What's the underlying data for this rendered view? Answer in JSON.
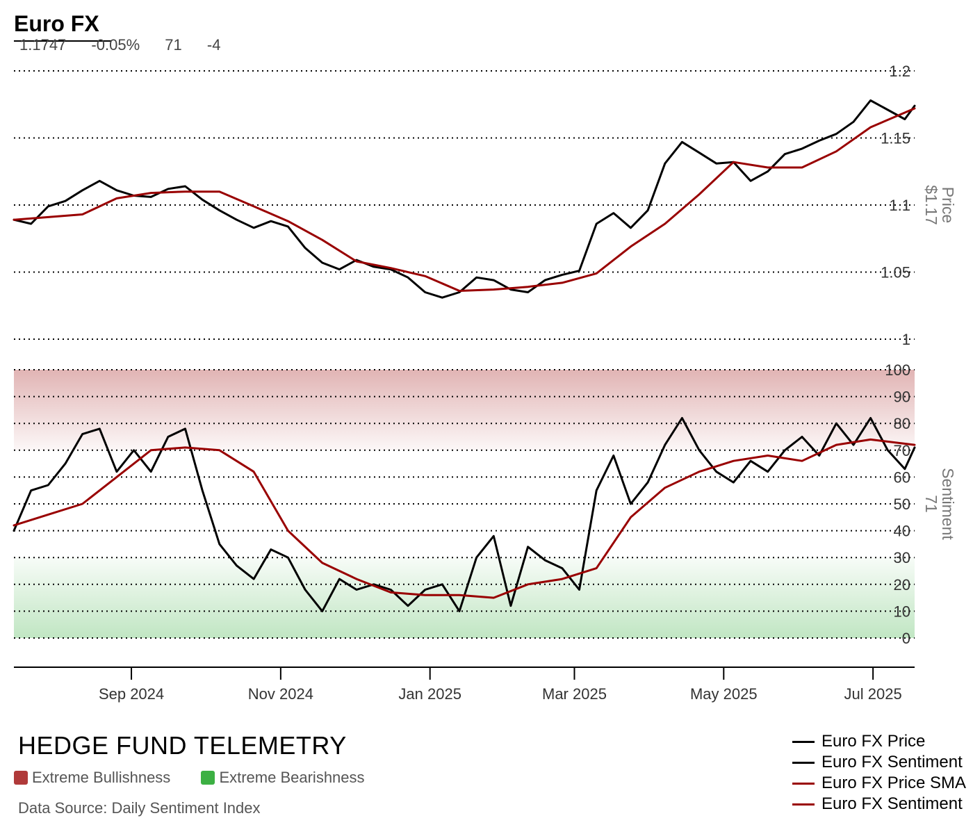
{
  "header": {
    "title": "Euro FX",
    "price": "1.1747",
    "change": "-0.05%",
    "sentiment": "71",
    "sentiment_change": "-4"
  },
  "footer": {
    "brand": "HEDGE FUND TELEMETRY",
    "source": "Data Source: Daily Sentiment Index",
    "zones": [
      {
        "label": "Extreme Bullishness",
        "color": "#b03a3a"
      },
      {
        "label": "Extreme Bearishness",
        "color": "#3cb043"
      }
    ]
  },
  "legend": [
    {
      "label": "Euro FX Price",
      "color": "#000000"
    },
    {
      "label": "Euro FX Sentiment",
      "color": "#000000"
    },
    {
      "label": "Euro FX Price SMA",
      "color": "#990000"
    },
    {
      "label": "Euro FX Sentiment",
      "color": "#990000"
    }
  ],
  "colors": {
    "line": "#000000",
    "sma": "#990000",
    "grid": "#000000",
    "axis_text": "#333333",
    "side_label": "#777777"
  },
  "chart_data": [
    {
      "type": "line",
      "panel": "price",
      "ylabel": "Price",
      "ylabel_value": "$1.17",
      "ylim": [
        1.0,
        1.2
      ],
      "yticks": [
        1,
        1.05,
        1.1,
        1.15,
        1.2
      ],
      "ytick_labels": [
        "1",
        "1.05",
        "1.1",
        "1.15",
        "1.2"
      ],
      "x_range": [
        "2024-07-15",
        "2025-07-18"
      ],
      "xticks": [
        "2024-09-01",
        "2024-11-01",
        "2025-01-01",
        "2025-03-01",
        "2025-05-01",
        "2025-07-01"
      ],
      "xtick_labels": [
        "Sep 2024",
        "Nov 2024",
        "Jan 2025",
        "Mar 2025",
        "May 2025",
        "Jul 2025"
      ],
      "series": [
        {
          "name": "Euro FX Price",
          "color": "#000000",
          "x": [
            "2024-07-15",
            "2024-07-22",
            "2024-07-29",
            "2024-08-05",
            "2024-08-12",
            "2024-08-19",
            "2024-08-26",
            "2024-09-02",
            "2024-09-09",
            "2024-09-16",
            "2024-09-23",
            "2024-09-30",
            "2024-10-07",
            "2024-10-14",
            "2024-10-21",
            "2024-10-28",
            "2024-11-04",
            "2024-11-11",
            "2024-11-18",
            "2024-11-25",
            "2024-12-02",
            "2024-12-09",
            "2024-12-16",
            "2024-12-23",
            "2024-12-30",
            "2025-01-06",
            "2025-01-13",
            "2025-01-20",
            "2025-01-27",
            "2025-02-03",
            "2025-02-10",
            "2025-02-17",
            "2025-02-24",
            "2025-03-03",
            "2025-03-10",
            "2025-03-17",
            "2025-03-24",
            "2025-03-31",
            "2025-04-07",
            "2025-04-14",
            "2025-04-21",
            "2025-04-28",
            "2025-05-05",
            "2025-05-12",
            "2025-05-19",
            "2025-05-26",
            "2025-06-02",
            "2025-06-09",
            "2025-06-16",
            "2025-06-23",
            "2025-06-30",
            "2025-07-07",
            "2025-07-14",
            "2025-07-18"
          ],
          "values": [
            1.089,
            1.086,
            1.099,
            1.103,
            1.111,
            1.118,
            1.111,
            1.107,
            1.106,
            1.112,
            1.114,
            1.104,
            1.096,
            1.089,
            1.083,
            1.088,
            1.084,
            1.068,
            1.057,
            1.052,
            1.059,
            1.054,
            1.052,
            1.046,
            1.035,
            1.031,
            1.035,
            1.046,
            1.044,
            1.037,
            1.035,
            1.044,
            1.048,
            1.051,
            1.086,
            1.094,
            1.083,
            1.096,
            1.131,
            1.147,
            1.139,
            1.131,
            1.132,
            1.118,
            1.125,
            1.138,
            1.142,
            1.148,
            1.153,
            1.162,
            1.178,
            1.171,
            1.164,
            1.174
          ]
        },
        {
          "name": "Euro FX Price SMA",
          "color": "#990000",
          "x": [
            "2024-07-15",
            "2024-07-29",
            "2024-08-12",
            "2024-08-26",
            "2024-09-09",
            "2024-09-23",
            "2024-10-07",
            "2024-10-21",
            "2024-11-04",
            "2024-11-18",
            "2024-12-02",
            "2024-12-16",
            "2024-12-30",
            "2025-01-13",
            "2025-01-27",
            "2025-02-10",
            "2025-02-24",
            "2025-03-10",
            "2025-03-24",
            "2025-04-07",
            "2025-04-21",
            "2025-05-05",
            "2025-05-19",
            "2025-06-02",
            "2025-06-16",
            "2025-06-30",
            "2025-07-18"
          ],
          "values": [
            1.089,
            1.091,
            1.093,
            1.105,
            1.109,
            1.11,
            1.11,
            1.099,
            1.088,
            1.074,
            1.058,
            1.053,
            1.047,
            1.036,
            1.037,
            1.039,
            1.042,
            1.049,
            1.069,
            1.086,
            1.108,
            1.132,
            1.128,
            1.128,
            1.14,
            1.158,
            1.172
          ]
        }
      ]
    },
    {
      "type": "line",
      "panel": "sentiment",
      "ylabel": "Sentiment",
      "ylabel_value": "71",
      "ylim": [
        0,
        100
      ],
      "yticks": [
        0,
        10,
        20,
        30,
        40,
        50,
        60,
        70,
        80,
        90,
        100
      ],
      "ytick_labels": [
        "0",
        "10",
        "20",
        "30",
        "40",
        "50",
        "60",
        "70",
        "80",
        "90",
        "100"
      ],
      "bands": [
        {
          "label": "Extreme Bullishness",
          "from": 70,
          "to": 100,
          "color": "#b03a3a"
        },
        {
          "label": "Extreme Bearishness",
          "from": 0,
          "to": 30,
          "color": "#3cb043"
        }
      ],
      "series": [
        {
          "name": "Euro FX Sentiment",
          "color": "#000000",
          "x": [
            "2024-07-15",
            "2024-07-22",
            "2024-07-29",
            "2024-08-05",
            "2024-08-12",
            "2024-08-19",
            "2024-08-26",
            "2024-09-02",
            "2024-09-09",
            "2024-09-16",
            "2024-09-23",
            "2024-09-30",
            "2024-10-07",
            "2024-10-14",
            "2024-10-21",
            "2024-10-28",
            "2024-11-04",
            "2024-11-11",
            "2024-11-18",
            "2024-11-25",
            "2024-12-02",
            "2024-12-09",
            "2024-12-16",
            "2024-12-23",
            "2024-12-30",
            "2025-01-06",
            "2025-01-13",
            "2025-01-20",
            "2025-01-27",
            "2025-02-03",
            "2025-02-10",
            "2025-02-17",
            "2025-02-24",
            "2025-03-03",
            "2025-03-10",
            "2025-03-17",
            "2025-03-24",
            "2025-03-31",
            "2025-04-07",
            "2025-04-14",
            "2025-04-21",
            "2025-04-28",
            "2025-05-05",
            "2025-05-12",
            "2025-05-19",
            "2025-05-26",
            "2025-06-02",
            "2025-06-09",
            "2025-06-16",
            "2025-06-23",
            "2025-06-30",
            "2025-07-07",
            "2025-07-14",
            "2025-07-18"
          ],
          "values": [
            40,
            55,
            57,
            65,
            76,
            78,
            62,
            70,
            62,
            75,
            78,
            55,
            35,
            27,
            22,
            33,
            30,
            18,
            10,
            22,
            18,
            20,
            18,
            12,
            18,
            20,
            10,
            30,
            38,
            12,
            34,
            29,
            26,
            18,
            55,
            68,
            50,
            58,
            72,
            82,
            70,
            62,
            58,
            66,
            62,
            70,
            75,
            68,
            80,
            72,
            82,
            70,
            63,
            71
          ]
        },
        {
          "name": "Euro FX Sentiment",
          "color": "#990000",
          "x": [
            "2024-07-15",
            "2024-07-29",
            "2024-08-12",
            "2024-08-26",
            "2024-09-09",
            "2024-09-23",
            "2024-10-07",
            "2024-10-21",
            "2024-11-04",
            "2024-11-18",
            "2024-12-02",
            "2024-12-16",
            "2024-12-30",
            "2025-01-13",
            "2025-01-27",
            "2025-02-10",
            "2025-02-24",
            "2025-03-10",
            "2025-03-24",
            "2025-04-07",
            "2025-04-21",
            "2025-05-05",
            "2025-05-19",
            "2025-06-02",
            "2025-06-16",
            "2025-06-30",
            "2025-07-18"
          ],
          "values": [
            42,
            46,
            50,
            60,
            70,
            71,
            70,
            62,
            40,
            28,
            22,
            17,
            16,
            16,
            15,
            20,
            22,
            26,
            45,
            56,
            62,
            66,
            68,
            66,
            72,
            74,
            72
          ]
        }
      ]
    }
  ]
}
